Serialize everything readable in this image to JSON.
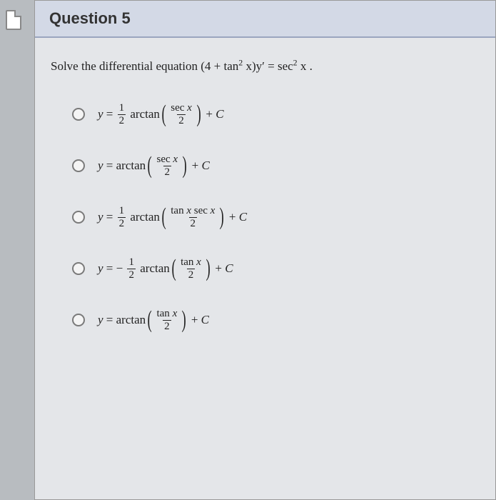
{
  "colors": {
    "page_bg": "#b8bcc0",
    "sheet_bg": "#e4e6e9",
    "header_bg": "#d3d9e6",
    "header_border": "#9aa5bf",
    "text": "#222222",
    "radio_border": "#7a7a7a"
  },
  "question": {
    "number_label": "Question 5",
    "prompt_text": "Solve the differential equation ",
    "prompt_math_html": "(4 + tan<sup>2</sup> <span class='it'>x</span>)<span class='it'>y</span>′ = sec<sup>2</sup> <span class='it'>x</span> ."
  },
  "options": [
    {
      "lhs": "y =",
      "coef_html": "<span class='frac'><span class='num'>1</span><span class='den'>2</span></span>",
      "neg": false,
      "inner_num": "sec x",
      "inner_den": "2"
    },
    {
      "lhs": "y =",
      "coef_html": "",
      "neg": false,
      "inner_num": "sec x",
      "inner_den": "2"
    },
    {
      "lhs": "y =",
      "coef_html": "<span class='frac'><span class='num'>1</span><span class='den'>2</span></span>",
      "neg": false,
      "inner_num": "tan x sec x",
      "inner_den": "2"
    },
    {
      "lhs": "y =",
      "coef_html": "<span class='frac'><span class='num'>1</span><span class='den'>2</span></span>",
      "neg": true,
      "inner_num": "tan x",
      "inner_den": "2"
    },
    {
      "lhs": "y =",
      "coef_html": "",
      "neg": false,
      "inner_num": "tan x",
      "inner_den": "2"
    }
  ],
  "labels": {
    "arctan": "arctan",
    "plus_c": "+ C"
  }
}
